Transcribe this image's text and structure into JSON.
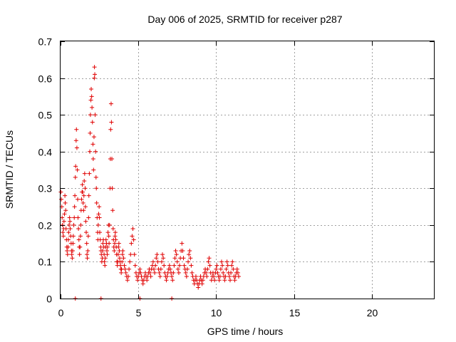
{
  "chart_data": {
    "type": "scatter",
    "title": "Day 006 of 2025, SRMTID for receiver p287",
    "xlabel": "GPS time / hours",
    "ylabel": "SRMTID / TECUs",
    "xlim": [
      0,
      24
    ],
    "ylim": [
      0,
      0.7
    ],
    "grid": true,
    "legend": "none",
    "marker": "+",
    "series_color": "#e00000",
    "x_ticks": [
      {
        "value": 0,
        "label": "0"
      },
      {
        "value": 5,
        "label": "5"
      },
      {
        "value": 10,
        "label": "10"
      },
      {
        "value": 15,
        "label": "15"
      },
      {
        "value": 20,
        "label": "20"
      }
    ],
    "y_ticks": [
      {
        "value": 0,
        "label": "0"
      },
      {
        "value": 0.1,
        "label": "0.1"
      },
      {
        "value": 0.2,
        "label": "0.2"
      },
      {
        "value": 0.3,
        "label": "0.3"
      },
      {
        "value": 0.4,
        "label": "0.4"
      },
      {
        "value": 0.5,
        "label": "0.5"
      },
      {
        "value": 0.6,
        "label": "0.6"
      },
      {
        "value": 0.7,
        "label": "0.7"
      }
    ],
    "series": [
      {
        "name": "SRMTID",
        "points": [
          [
            0.02,
            0.29
          ],
          [
            0.05,
            0.27
          ],
          [
            0.08,
            0.25
          ],
          [
            0.1,
            0.22
          ],
          [
            0.12,
            0.2
          ],
          [
            0.15,
            0.18
          ],
          [
            0.18,
            0.17
          ],
          [
            0.2,
            0.19
          ],
          [
            0.22,
            0.21
          ],
          [
            0.25,
            0.23
          ],
          [
            0.28,
            0.28
          ],
          [
            0.3,
            0.26
          ],
          [
            0.33,
            0.24
          ],
          [
            0.35,
            0.19
          ],
          [
            0.38,
            0.16
          ],
          [
            0.4,
            0.14
          ],
          [
            0.42,
            0.13
          ],
          [
            0.45,
            0.12
          ],
          [
            0.48,
            0.14
          ],
          [
            0.5,
            0.16
          ],
          [
            0.52,
            0.18
          ],
          [
            0.55,
            0.2
          ],
          [
            0.58,
            0.22
          ],
          [
            0.6,
            0.21
          ],
          [
            0.62,
            0.19
          ],
          [
            0.65,
            0.17
          ],
          [
            0.68,
            0.15
          ],
          [
            0.7,
            0.13
          ],
          [
            0.72,
            0.12
          ],
          [
            0.75,
            0.11
          ],
          [
            0.78,
            0.13
          ],
          [
            0.8,
            0.15
          ],
          [
            0.82,
            0.17
          ],
          [
            0.85,
            0.2
          ],
          [
            0.88,
            0.22
          ],
          [
            0.9,
            0.25
          ],
          [
            0.92,
            0.28
          ],
          [
            0.95,
            0.33
          ],
          [
            0.97,
            0.36
          ],
          [
            1.0,
            0.43
          ],
          [
            1.02,
            0.46
          ],
          [
            1.05,
            0.41
          ],
          [
            1.08,
            0.35
          ],
          [
            1.1,
            0.27
          ],
          [
            1.12,
            0.22
          ],
          [
            1.15,
            0.19
          ],
          [
            1.18,
            0.16
          ],
          [
            1.2,
            0.14
          ],
          [
            1.22,
            0.12
          ],
          [
            1.25,
            0.14
          ],
          [
            1.28,
            0.17
          ],
          [
            1.3,
            0.2
          ],
          [
            1.32,
            0.24
          ],
          [
            1.35,
            0.27
          ],
          [
            1.38,
            0.29
          ],
          [
            1.4,
            0.31
          ],
          [
            1.42,
            0.29
          ],
          [
            1.45,
            0.26
          ],
          [
            1.48,
            0.24
          ],
          [
            1.5,
            0.28
          ],
          [
            1.52,
            0.32
          ],
          [
            1.55,
            0.34
          ],
          [
            1.58,
            0.3
          ],
          [
            1.6,
            0.25
          ],
          [
            1.62,
            0.21
          ],
          [
            1.65,
            0.18
          ],
          [
            1.68,
            0.15
          ],
          [
            1.7,
            0.12
          ],
          [
            1.72,
            0.11
          ],
          [
            1.75,
            0.13
          ],
          [
            1.78,
            0.17
          ],
          [
            1.8,
            0.22
          ],
          [
            1.82,
            0.28
          ],
          [
            1.85,
            0.34
          ],
          [
            1.88,
            0.4
          ],
          [
            1.9,
            0.45
          ],
          [
            1.92,
            0.5
          ],
          [
            1.95,
            0.54
          ],
          [
            1.97,
            0.57
          ],
          [
            2.0,
            0.55
          ],
          [
            2.02,
            0.52
          ],
          [
            2.05,
            0.48
          ],
          [
            2.08,
            0.42
          ],
          [
            2.1,
            0.38
          ],
          [
            2.12,
            0.35
          ],
          [
            2.15,
            0.44
          ],
          [
            2.17,
            0.6
          ],
          [
            2.18,
            0.63
          ],
          [
            2.2,
            0.61
          ],
          [
            2.22,
            0.5
          ],
          [
            2.25,
            0.4
          ],
          [
            2.28,
            0.33
          ],
          [
            2.3,
            0.3
          ],
          [
            2.32,
            0.26
          ],
          [
            2.35,
            0.22
          ],
          [
            2.38,
            0.18
          ],
          [
            2.4,
            0.16
          ],
          [
            2.42,
            0.2
          ],
          [
            2.45,
            0.23
          ],
          [
            2.48,
            0.25
          ],
          [
            2.5,
            0.22
          ],
          [
            2.52,
            0.18
          ],
          [
            2.55,
            0.16
          ],
          [
            2.58,
            0.14
          ],
          [
            2.6,
            0.13
          ],
          [
            2.62,
            0.12
          ],
          [
            2.65,
            0.1
          ],
          [
            2.68,
            0.11
          ],
          [
            2.7,
            0.13
          ],
          [
            2.72,
            0.15
          ],
          [
            2.75,
            0.16
          ],
          [
            2.78,
            0.14
          ],
          [
            2.8,
            0.12
          ],
          [
            2.82,
            0.1
          ],
          [
            2.85,
            0.09
          ],
          [
            2.88,
            0.11
          ],
          [
            2.9,
            0.14
          ],
          [
            2.92,
            0.16
          ],
          [
            2.95,
            0.15
          ],
          [
            2.98,
            0.13
          ],
          [
            3.0,
            0.12
          ],
          [
            3.02,
            0.14
          ],
          [
            3.05,
            0.18
          ],
          [
            3.08,
            0.2
          ],
          [
            3.1,
            0.17
          ],
          [
            3.12,
            0.15
          ],
          [
            3.15,
            0.2
          ],
          [
            3.18,
            0.3
          ],
          [
            3.2,
            0.38
          ],
          [
            3.22,
            0.46
          ],
          [
            3.25,
            0.53
          ],
          [
            3.27,
            0.48
          ],
          [
            3.3,
            0.38
          ],
          [
            3.32,
            0.3
          ],
          [
            3.35,
            0.24
          ],
          [
            3.38,
            0.19
          ],
          [
            3.4,
            0.16
          ],
          [
            3.42,
            0.14
          ],
          [
            3.45,
            0.13
          ],
          [
            3.48,
            0.15
          ],
          [
            3.5,
            0.17
          ],
          [
            3.52,
            0.18
          ],
          [
            3.55,
            0.16
          ],
          [
            3.58,
            0.14
          ],
          [
            3.6,
            0.12
          ],
          [
            3.62,
            0.1
          ],
          [
            3.65,
            0.09
          ],
          [
            3.68,
            0.1
          ],
          [
            3.7,
            0.12
          ],
          [
            3.72,
            0.14
          ],
          [
            3.75,
            0.15
          ],
          [
            3.78,
            0.13
          ],
          [
            3.8,
            0.11
          ],
          [
            3.82,
            0.1
          ],
          [
            3.85,
            0.09
          ],
          [
            3.88,
            0.08
          ],
          [
            3.9,
            0.07
          ],
          [
            3.92,
            0.08
          ],
          [
            3.95,
            0.1
          ],
          [
            3.98,
            0.12
          ],
          [
            4.0,
            0.13
          ],
          [
            4.05,
            0.11
          ],
          [
            4.1,
            0.09
          ],
          [
            4.15,
            0.08
          ],
          [
            4.2,
            0.07
          ],
          [
            4.25,
            0.06
          ],
          [
            4.3,
            0.05
          ],
          [
            4.35,
            0.06
          ],
          [
            4.4,
            0.08
          ],
          [
            4.45,
            0.1
          ],
          [
            4.5,
            0.12
          ],
          [
            4.55,
            0.15
          ],
          [
            4.6,
            0.17
          ],
          [
            4.65,
            0.19
          ],
          [
            4.7,
            0.16
          ],
          [
            4.75,
            0.12
          ],
          [
            4.8,
            0.09
          ],
          [
            4.85,
            0.07
          ],
          [
            4.9,
            0.06
          ],
          [
            4.95,
            0.05
          ],
          [
            5.0,
            0.06
          ],
          [
            5.05,
            0.07
          ],
          [
            5.1,
            0.08
          ],
          [
            5.15,
            0.07
          ],
          [
            5.2,
            0.06
          ],
          [
            5.25,
            0.05
          ],
          [
            5.3,
            0.04
          ],
          [
            5.35,
            0.05
          ],
          [
            5.4,
            0.06
          ],
          [
            5.45,
            0.07
          ],
          [
            5.5,
            0.06
          ],
          [
            5.55,
            0.05
          ],
          [
            5.6,
            0.06
          ],
          [
            5.65,
            0.07
          ],
          [
            5.7,
            0.08
          ],
          [
            5.75,
            0.07
          ],
          [
            5.8,
            0.06
          ],
          [
            5.85,
            0.08
          ],
          [
            5.9,
            0.09
          ],
          [
            5.95,
            0.1
          ],
          [
            6.0,
            0.08
          ],
          [
            6.05,
            0.07
          ],
          [
            6.1,
            0.09
          ],
          [
            6.15,
            0.11
          ],
          [
            6.2,
            0.12
          ],
          [
            6.25,
            0.1
          ],
          [
            6.3,
            0.08
          ],
          [
            6.35,
            0.07
          ],
          [
            6.4,
            0.06
          ],
          [
            6.45,
            0.08
          ],
          [
            6.5,
            0.1
          ],
          [
            6.55,
            0.12
          ],
          [
            6.6,
            0.11
          ],
          [
            6.65,
            0.09
          ],
          [
            6.7,
            0.07
          ],
          [
            6.75,
            0.06
          ],
          [
            6.8,
            0.05
          ],
          [
            6.85,
            0.06
          ],
          [
            6.9,
            0.07
          ],
          [
            6.95,
            0.08
          ],
          [
            7.0,
            0.09
          ],
          [
            7.05,
            0.08
          ],
          [
            7.1,
            0.07
          ],
          [
            7.15,
            0.06
          ],
          [
            7.2,
            0.05
          ],
          [
            7.25,
            0.07
          ],
          [
            7.3,
            0.09
          ],
          [
            7.35,
            0.11
          ],
          [
            7.4,
            0.13
          ],
          [
            7.45,
            0.12
          ],
          [
            7.5,
            0.1
          ],
          [
            7.55,
            0.08
          ],
          [
            7.6,
            0.07
          ],
          [
            7.65,
            0.09
          ],
          [
            7.7,
            0.11
          ],
          [
            7.75,
            0.13
          ],
          [
            7.8,
            0.15
          ],
          [
            7.85,
            0.13
          ],
          [
            7.9,
            0.11
          ],
          [
            7.95,
            0.09
          ],
          [
            8.0,
            0.08
          ],
          [
            8.05,
            0.07
          ],
          [
            8.1,
            0.06
          ],
          [
            8.15,
            0.08
          ],
          [
            8.2,
            0.1
          ],
          [
            8.25,
            0.12
          ],
          [
            8.3,
            0.13
          ],
          [
            8.35,
            0.11
          ],
          [
            8.4,
            0.09
          ],
          [
            8.45,
            0.07
          ],
          [
            8.5,
            0.06
          ],
          [
            8.55,
            0.05
          ],
          [
            8.6,
            0.04
          ],
          [
            8.65,
            0.05
          ],
          [
            8.7,
            0.06
          ],
          [
            8.75,
            0.05
          ],
          [
            8.8,
            0.04
          ],
          [
            8.85,
            0.03
          ],
          [
            8.9,
            0.04
          ],
          [
            8.95,
            0.05
          ],
          [
            9.0,
            0.06
          ],
          [
            9.05,
            0.05
          ],
          [
            9.1,
            0.04
          ],
          [
            9.15,
            0.05
          ],
          [
            9.2,
            0.06
          ],
          [
            9.25,
            0.07
          ],
          [
            9.3,
            0.08
          ],
          [
            9.35,
            0.07
          ],
          [
            9.4,
            0.06
          ],
          [
            9.45,
            0.08
          ],
          [
            9.5,
            0.1
          ],
          [
            9.55,
            0.11
          ],
          [
            9.6,
            0.09
          ],
          [
            9.65,
            0.07
          ],
          [
            9.7,
            0.05
          ],
          [
            9.75,
            0.06
          ],
          [
            9.8,
            0.07
          ],
          [
            9.85,
            0.06
          ],
          [
            9.9,
            0.05
          ],
          [
            9.95,
            0.07
          ],
          [
            10.0,
            0.08
          ],
          [
            10.05,
            0.09
          ],
          [
            10.1,
            0.07
          ],
          [
            10.15,
            0.06
          ],
          [
            10.2,
            0.05
          ],
          [
            10.25,
            0.06
          ],
          [
            10.3,
            0.08
          ],
          [
            10.35,
            0.1
          ],
          [
            10.4,
            0.09
          ],
          [
            10.45,
            0.07
          ],
          [
            10.5,
            0.06
          ],
          [
            10.55,
            0.05
          ],
          [
            10.6,
            0.06
          ],
          [
            10.65,
            0.08
          ],
          [
            10.7,
            0.1
          ],
          [
            10.75,
            0.09
          ],
          [
            10.8,
            0.07
          ],
          [
            10.85,
            0.06
          ],
          [
            10.9,
            0.05
          ],
          [
            10.95,
            0.07
          ],
          [
            11.0,
            0.09
          ],
          [
            11.05,
            0.1
          ],
          [
            11.1,
            0.08
          ],
          [
            11.15,
            0.06
          ],
          [
            11.2,
            0.05
          ],
          [
            11.25,
            0.06
          ],
          [
            11.3,
            0.07
          ],
          [
            11.35,
            0.08
          ],
          [
            11.4,
            0.07
          ],
          [
            11.45,
            0.06
          ],
          [
            0.95,
            0.0
          ],
          [
            2.6,
            0.0
          ],
          [
            5.1,
            0.0
          ],
          [
            7.15,
            0.0
          ]
        ]
      }
    ]
  }
}
